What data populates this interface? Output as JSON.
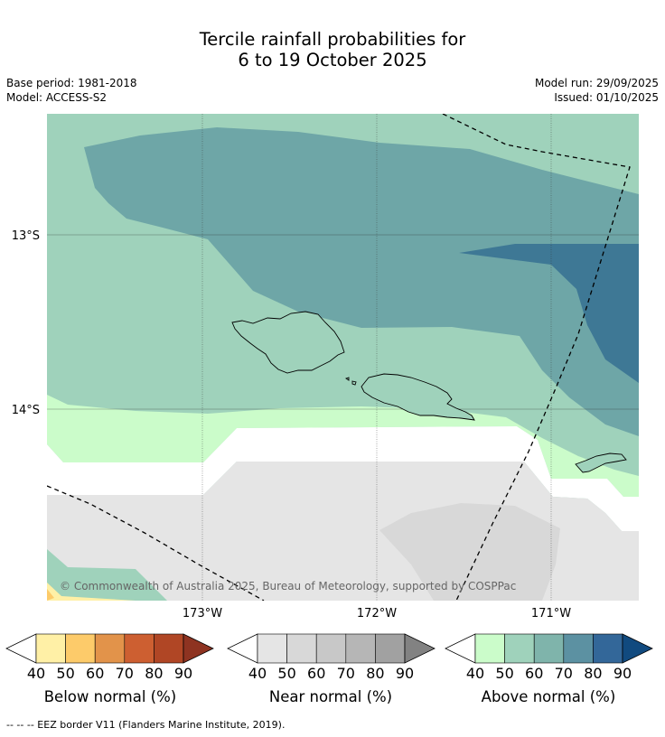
{
  "title": {
    "line1": "Tercile rainfall probabilities for",
    "line2": "6 to 19 October 2025"
  },
  "meta": {
    "base_period": "Base period: 1981-2018",
    "model": "Model: ACCESS-S2",
    "model_run": "Model run: 29/09/2025",
    "issued": "Issued: 01/10/2025"
  },
  "map": {
    "lat_labels": [
      "13°S",
      "14°S"
    ],
    "lon_labels": [
      "173°W",
      "172°W",
      "171°W"
    ],
    "copyright": "© Commonwealth of Australia 2025, Bureau of Meteorology, supported by COSPPac"
  },
  "colorbars": [
    {
      "title": "Below normal (%)",
      "ticks": [
        "40",
        "50",
        "60",
        "70",
        "80",
        "90"
      ],
      "colors": [
        "#fff0a6",
        "#fdcb6a",
        "#e2934a",
        "#cd5f31",
        "#b04625",
        "#8e3321"
      ]
    },
    {
      "title": "Near normal (%)",
      "ticks": [
        "40",
        "50",
        "60",
        "70",
        "80",
        "90"
      ],
      "colors": [
        "#e5e5e5",
        "#d8d8d8",
        "#c8c8c8",
        "#b6b6b6",
        "#a1a1a1",
        "#828282"
      ]
    },
    {
      "title": "Above normal (%)",
      "ticks": [
        "40",
        "50",
        "60",
        "70",
        "80",
        "90"
      ],
      "colors": [
        "#cbfcca",
        "#9fd2bb",
        "#7fb4ab",
        "#5c91a2",
        "#336799",
        "#114a7f"
      ]
    }
  ],
  "footer": "--  --  -- EEZ border V11 (Flanders Marine Institute, 2019)."
}
